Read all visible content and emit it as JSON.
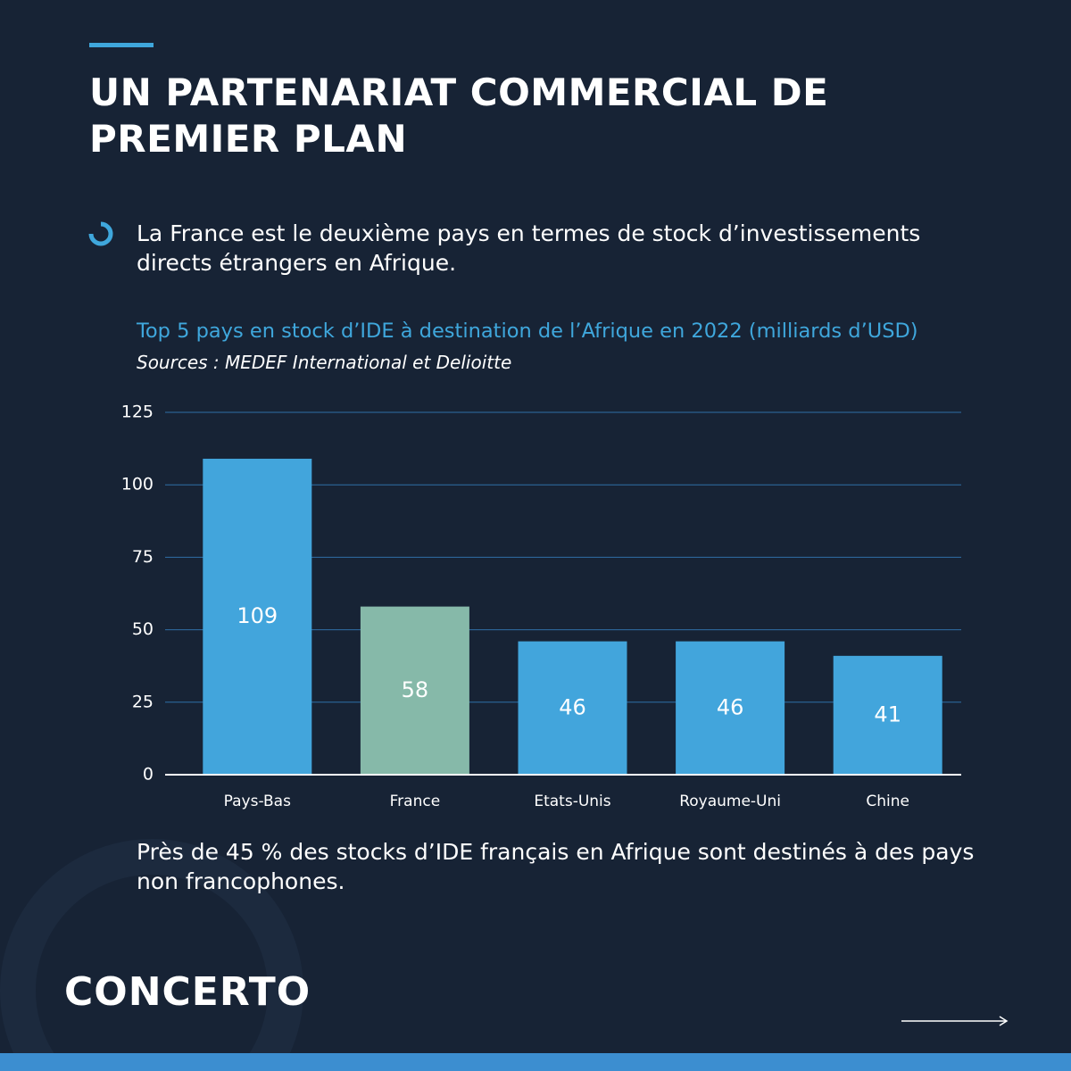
{
  "header": {
    "title": "UN PARTENARIAT COMMERCIAL DE PREMIER PLAN"
  },
  "intro": "La France est le deuxième pays en termes de stock d’investissements directs étrangers en Afrique.",
  "chart_data": {
    "type": "bar",
    "title": "Top 5 pays en stock d’IDE à destination de l’Afrique  en 2022 (milliards d’USD)",
    "subtitle": "Sources : MEDEF International et Delioitte",
    "categories": [
      "Pays-Bas",
      "France",
      "Etats-Unis",
      "Royaume-Uni",
      "Chine"
    ],
    "values": [
      109,
      58,
      46,
      46,
      41
    ],
    "colors": [
      "#42a5dc",
      "#86b9a9",
      "#42a5dc",
      "#42a5dc",
      "#42a5dc"
    ],
    "ylim": [
      0,
      125
    ],
    "yticks": [
      0,
      25,
      50,
      75,
      100,
      125
    ],
    "grid": true
  },
  "footer_note": "Près de 45 % des stocks d’IDE français en Afrique sont destinés à des pays non francophones.",
  "logo": "CONCERTO"
}
